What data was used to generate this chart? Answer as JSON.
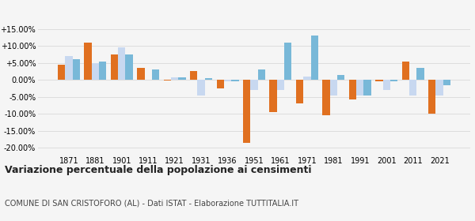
{
  "years": [
    1871,
    1881,
    1901,
    1911,
    1921,
    1931,
    1936,
    1951,
    1961,
    1971,
    1981,
    1991,
    2001,
    2011,
    2021
  ],
  "san_cristoforo": [
    4.5,
    11.0,
    7.5,
    3.5,
    -0.2,
    2.5,
    -2.5,
    -18.5,
    -9.5,
    -7.0,
    -10.5,
    -5.8,
    -0.5,
    5.5,
    -10.0
  ],
  "provincia_al": [
    7.0,
    5.0,
    9.5,
    0.0,
    0.8,
    -4.5,
    -0.5,
    -3.0,
    -3.0,
    1.0,
    -4.5,
    -4.5,
    -3.0,
    -4.5,
    -4.5
  ],
  "piemonte": [
    6.0,
    5.5,
    7.5,
    3.0,
    0.8,
    0.5,
    -0.5,
    3.0,
    11.0,
    13.0,
    1.5,
    -4.5,
    -0.5,
    3.5,
    -1.5
  ],
  "color_san_cristoforo": "#e07020",
  "color_provincia": "#c8d8f0",
  "color_piemonte": "#78b8d8",
  "title": "Variazione percentuale della popolazione ai censimenti",
  "subtitle": "COMUNE DI SAN CRISTOFORO (AL) - Dati ISTAT - Elaborazione TUTTITALIA.IT",
  "ylim": [
    -22,
    17
  ],
  "yticks": [
    -20.0,
    -15.0,
    -10.0,
    -5.0,
    0.0,
    5.0,
    10.0,
    15.0
  ],
  "background_color": "#f5f5f5"
}
